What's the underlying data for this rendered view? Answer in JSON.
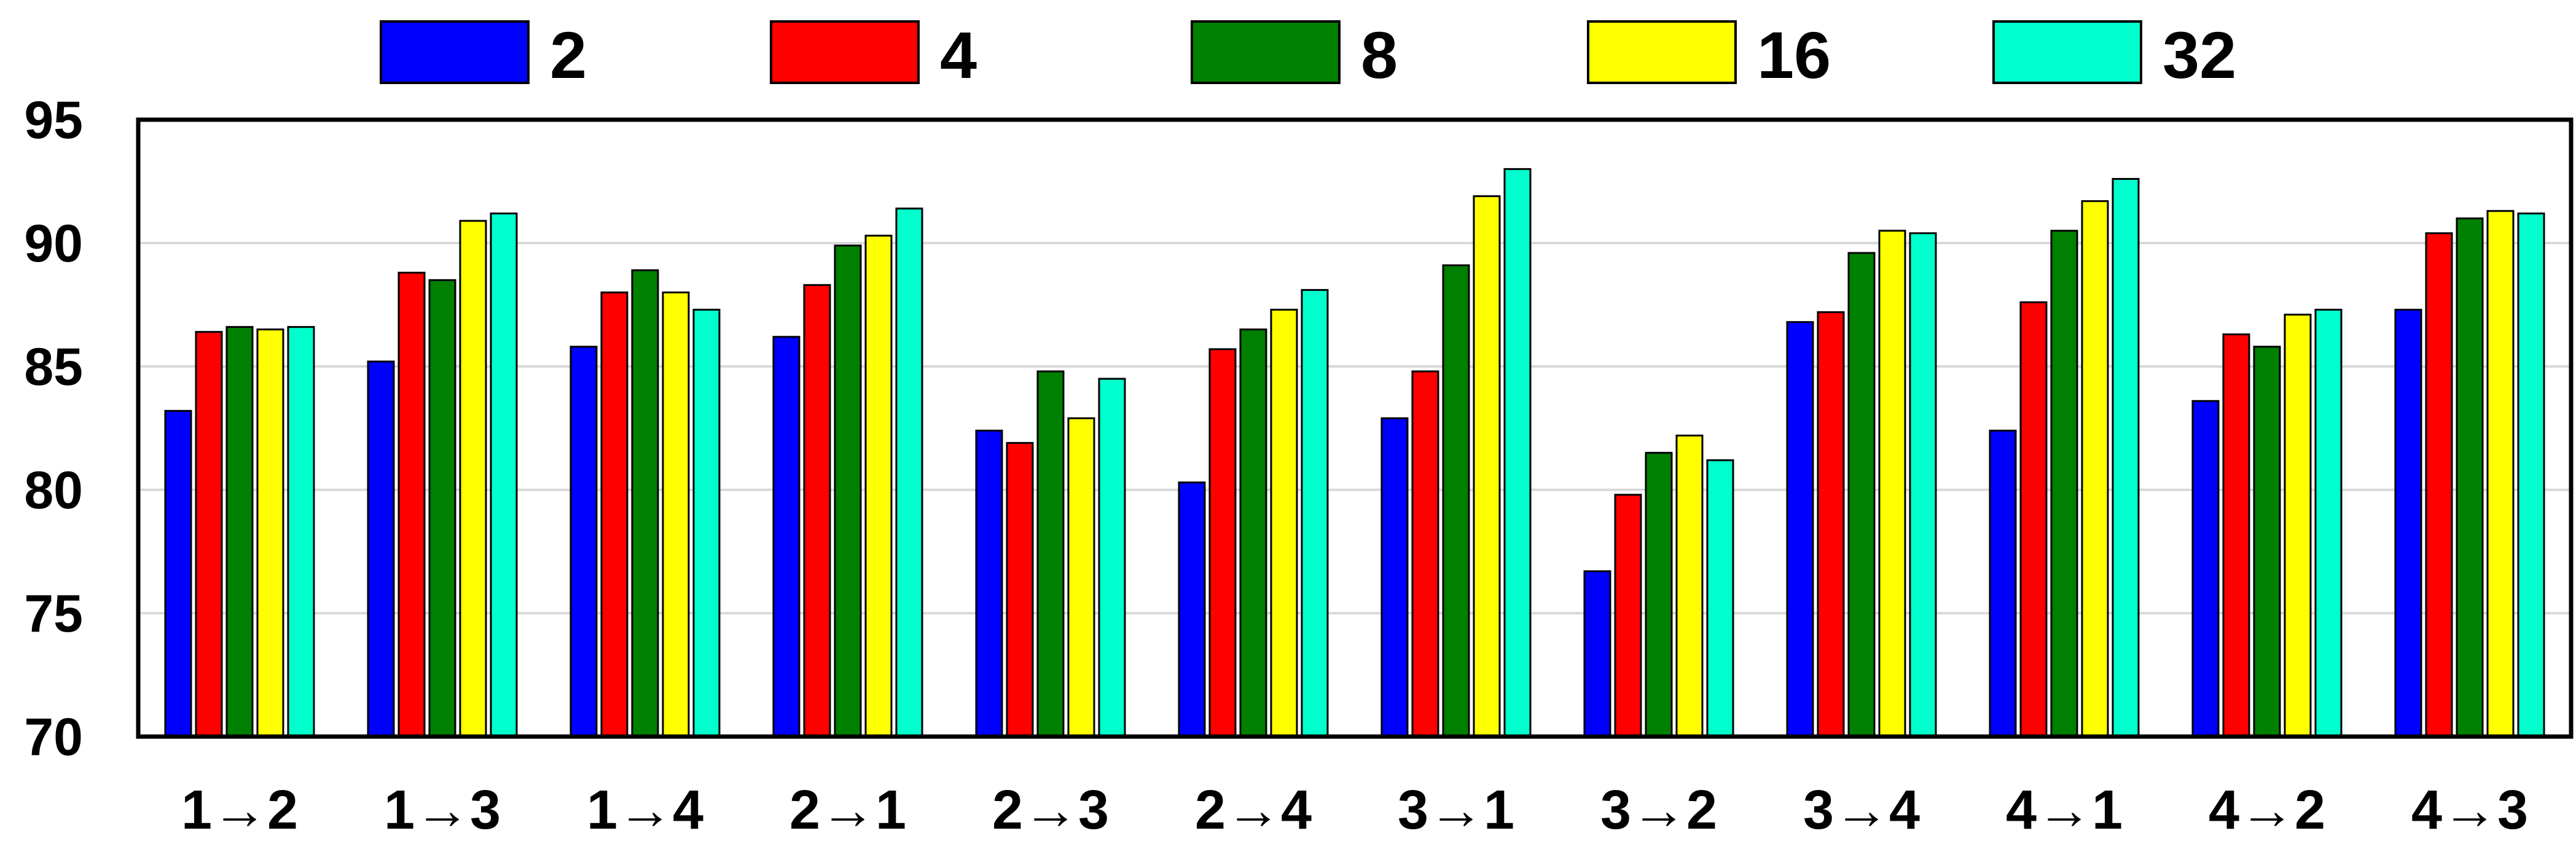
{
  "chart_data": {
    "type": "bar",
    "title": "",
    "xlabel": "",
    "ylabel": "",
    "ylim": [
      70,
      95
    ],
    "yticks": [
      70,
      75,
      80,
      85,
      90,
      95
    ],
    "grid": true,
    "legend_position": "top",
    "categories": [
      "1→2",
      "1→3",
      "1→4",
      "2→1",
      "2→3",
      "2→4",
      "3→1",
      "3→2",
      "3→4",
      "4→1",
      "4→2",
      "4→3"
    ],
    "series": [
      {
        "name": "2",
        "color": "#0000FF",
        "values": [
          83.2,
          85.2,
          85.8,
          86.2,
          82.4,
          80.3,
          82.9,
          76.7,
          86.8,
          82.4,
          83.6,
          87.3
        ]
      },
      {
        "name": "4",
        "color": "#FF0000",
        "values": [
          86.4,
          88.8,
          88.0,
          88.3,
          81.9,
          85.7,
          84.8,
          79.8,
          87.2,
          87.6,
          86.3,
          90.4
        ]
      },
      {
        "name": "8",
        "color": "#008000",
        "values": [
          86.6,
          88.5,
          88.9,
          89.9,
          84.8,
          86.5,
          89.1,
          81.5,
          89.6,
          90.5,
          85.8,
          91.0
        ]
      },
      {
        "name": "16",
        "color": "#FFFF00",
        "values": [
          86.5,
          90.9,
          88.0,
          90.3,
          82.9,
          87.3,
          91.9,
          82.2,
          90.5,
          91.7,
          87.1,
          91.3
        ]
      },
      {
        "name": "32",
        "color": "#00FFCC",
        "values": [
          86.6,
          91.2,
          87.3,
          91.4,
          84.5,
          88.1,
          93.0,
          81.2,
          90.4,
          92.6,
          87.3,
          91.2
        ]
      }
    ]
  }
}
